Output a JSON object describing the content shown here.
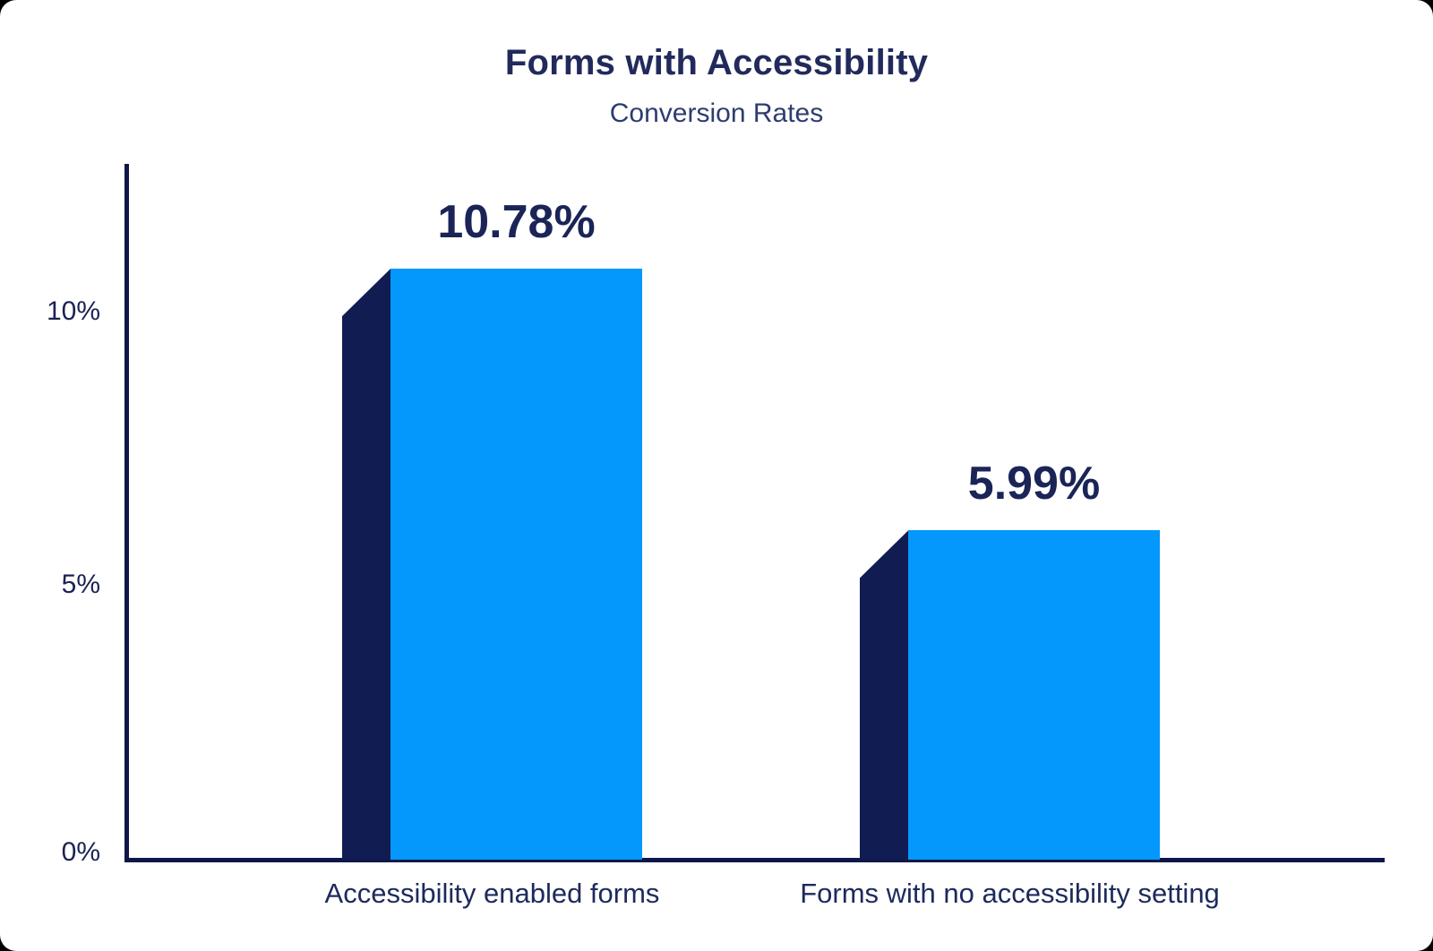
{
  "chart_data": {
    "type": "bar",
    "title": "Forms with Accessibility",
    "subtitle": "Conversion Rates",
    "categories": [
      "Accessibility enabled forms",
      "Forms with no accessibility setting"
    ],
    "values": [
      10.78,
      5.99
    ],
    "value_labels": [
      "10.78%",
      "5.99%"
    ],
    "y_ticks": [
      {
        "value": 0,
        "label": "0%"
      },
      {
        "value": 5,
        "label": "5%"
      },
      {
        "value": 10,
        "label": "10%"
      }
    ],
    "ylim": [
      0,
      12.7
    ],
    "xlabel": "",
    "ylabel": "",
    "grid": false,
    "legend": "none",
    "style": "3d-extruded-left",
    "colors": {
      "bar_face": "#0598FC",
      "bar_side": "#111C52",
      "axis": "#0E1747",
      "title": "#222A5C",
      "subtitle": "#2E3C70",
      "value_label": "#1B2457",
      "tick_label": "#1A2253",
      "category_label": "#1D2A5C",
      "background": "#FFFFFF"
    }
  }
}
